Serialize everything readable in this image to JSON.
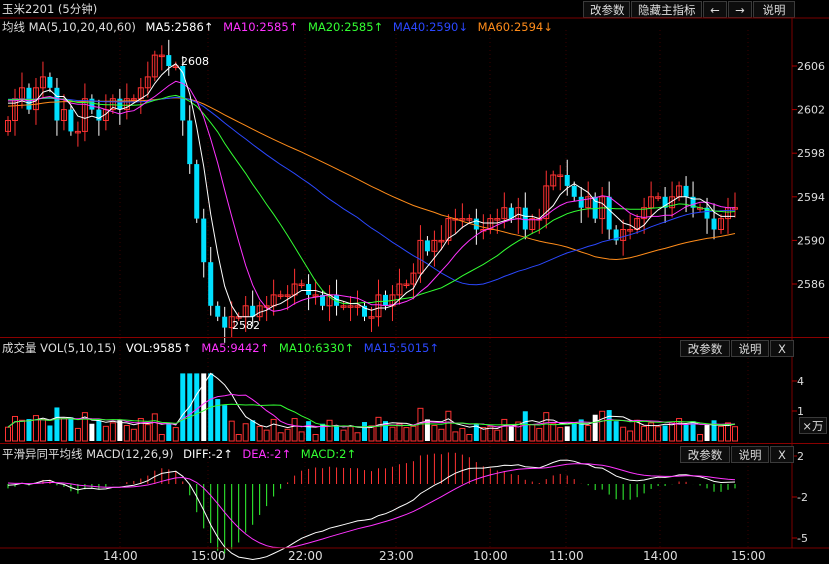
{
  "toolbar": {
    "change_params": "改参数",
    "hide_main_indicator": "隐藏主指标",
    "left_arrow": "←",
    "right_arrow": "→",
    "help": "说明"
  },
  "main_panel": {
    "ma_legend": {
      "prefix": "均线 MA(5,10,20,40,60)",
      "ma5": "MA5:2586↑",
      "ma10": "MA10:2585↑",
      "ma20": "MA20:2585↑",
      "ma40": "MA40:2590↓",
      "ma60": "MA60:2594↓"
    },
    "symbol": "玉米2201 (5分钟)",
    "high_label": "2608",
    "low_label": "2582"
  },
  "volume_panel": {
    "legend": {
      "prefix": "成交量 VOL(5,10,15)",
      "vol": "VOL:9585↑",
      "ma5": "MA5:9442↑",
      "ma10": "MA10:6330↑",
      "ma15": "MA15:5015↑"
    },
    "change_params": "改参数",
    "help": "说明",
    "close": "X",
    "unit": "×万"
  },
  "macd_panel": {
    "legend": {
      "prefix": "平滑异同平均线 MACD(12,26,9)",
      "diff": "DIFF:-2↑",
      "dea": "DEA:-2↑",
      "macd": "MACD:2↑"
    },
    "change_params": "改参数",
    "help": "说明",
    "close": "X"
  },
  "colors": {
    "up": "#ff3232",
    "down": "#00e0ff",
    "ma5": "#ffffff",
    "ma10": "#ff33ff",
    "ma20": "#33ff33",
    "ma40": "#2b48ff",
    "ma60": "#ff8c1a",
    "grid": "#7a0000"
  },
  "chart_data": [
    {
      "type": "candlestick",
      "title": "玉米2201 (5分钟)",
      "y_ticks": [
        2606,
        2602,
        2598,
        2594,
        2590,
        2586
      ],
      "x_ticks": [
        "14:00",
        "15:00",
        "22:00",
        "23:00",
        "10:00",
        "11:00",
        "14:00",
        "15:00"
      ],
      "annotations": [
        {
          "label": "2608",
          "value": 2608
        },
        {
          "label": "2582",
          "value": 2582
        }
      ],
      "series": [
        {
          "name": "MA5",
          "last": 2586
        },
        {
          "name": "MA10",
          "last": 2585
        },
        {
          "name": "MA20",
          "last": 2585
        },
        {
          "name": "MA40",
          "last": 2590
        },
        {
          "name": "MA60",
          "last": 2594
        }
      ],
      "close": [
        2601,
        2603,
        2604,
        2602,
        2604,
        2605,
        2604,
        2601,
        2602,
        2600,
        2600,
        2603,
        2602,
        2601,
        2602,
        2603,
        2602,
        2603,
        2603,
        2604,
        2605,
        2607,
        2607,
        2606,
        2606,
        2601,
        2597,
        2592,
        2588,
        2584,
        2583,
        2582,
        2583,
        2583,
        2584,
        2583,
        2584,
        2584,
        2585,
        2585,
        2585,
        2586,
        2586,
        2585,
        2585,
        2584,
        2585,
        2584,
        2584,
        2584,
        2584,
        2583,
        2583,
        2585,
        2584,
        2585,
        2586,
        2586,
        2587,
        2590,
        2589,
        2590,
        2590,
        2592,
        2592,
        2592,
        2592,
        2591,
        2591,
        2592,
        2592,
        2593,
        2592,
        2593,
        2591,
        2592,
        2592,
        2595,
        2596,
        2596,
        2595,
        2594,
        2593,
        2594,
        2592,
        2594,
        2591,
        2590,
        2591,
        2591,
        2592,
        2593,
        2594,
        2594,
        2593,
        2594,
        2595,
        2594,
        2593,
        2593,
        2592,
        2591,
        2592,
        2593,
        2593
      ]
    },
    {
      "type": "bar",
      "title": "成交量 VOL(5,10,15)",
      "y_ticks": [
        4,
        1
      ],
      "unit": "×万",
      "series": [
        {
          "name": "VOL",
          "last": 9585
        },
        {
          "name": "MA5",
          "last": 9442
        },
        {
          "name": "MA10",
          "last": 6330
        },
        {
          "name": "MA15",
          "last": 5015
        }
      ]
    },
    {
      "type": "bar",
      "title": "平滑异同平均线 MACD(12,26,9)",
      "y_ticks": [
        2,
        -2,
        -5
      ],
      "series": [
        {
          "name": "DIFF",
          "last": -2
        },
        {
          "name": "DEA",
          "last": -2
        },
        {
          "name": "MACD",
          "last": 2
        }
      ]
    }
  ]
}
